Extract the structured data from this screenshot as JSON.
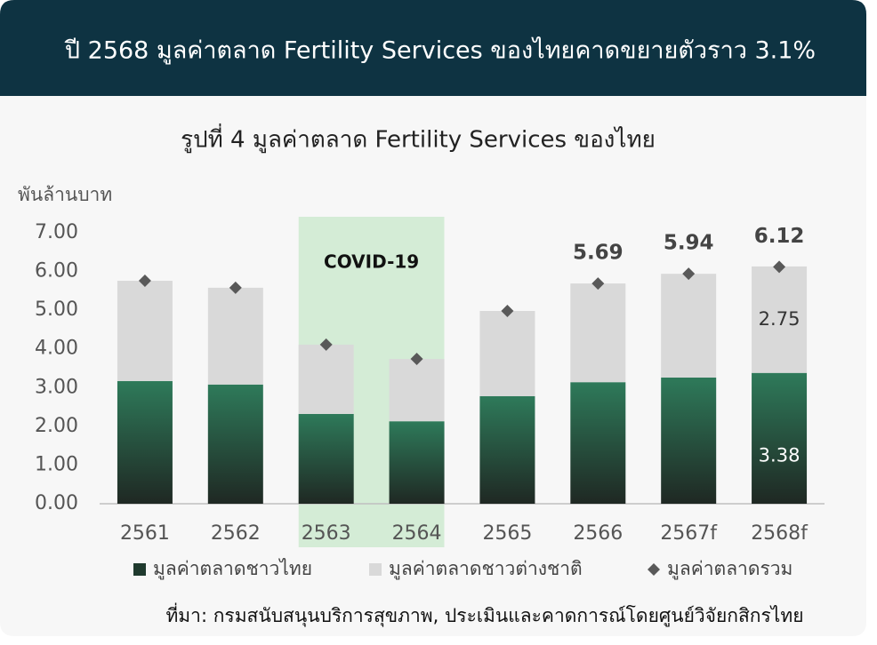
{
  "header": {
    "title": "ปี 2568 มูลค่าตลาด Fertility Services ของไทยคาดขยายตัวราว 3.1%"
  },
  "chart_data": {
    "type": "stacked_bar",
    "title": "รูปที่ 4 มูลค่าตลาด Fertility Services ของไทย",
    "y_label": "พันล้านบาท",
    "categories": [
      "2561",
      "2562",
      "2563",
      "2564",
      "2565",
      "2566",
      "2567f",
      "2568f"
    ],
    "series": [
      {
        "name": "มูลค่าตลาดชาวไทย",
        "color": "#2e7a5a",
        "values": [
          3.17,
          3.08,
          2.32,
          2.13,
          2.78,
          3.14,
          3.26,
          3.38
        ],
        "value_labels": [
          null,
          null,
          null,
          null,
          null,
          null,
          null,
          "3.38"
        ]
      },
      {
        "name": "มูลค่าตลาดชาวต่างชาติ",
        "color": "#d9d9d9",
        "values": [
          2.59,
          2.5,
          1.79,
          1.61,
          2.2,
          2.55,
          2.68,
          2.75
        ],
        "value_labels": [
          null,
          null,
          null,
          null,
          null,
          null,
          null,
          "2.75"
        ]
      },
      {
        "name": "มูลค่าตลาดรวม",
        "type": "marker",
        "color": "#595959",
        "values": [
          5.76,
          5.58,
          4.11,
          3.74,
          4.98,
          5.69,
          5.94,
          6.12
        ],
        "value_labels": [
          null,
          null,
          null,
          null,
          null,
          "5.69",
          "5.94",
          "6.12"
        ]
      }
    ],
    "highlight": {
      "label": "COVID-19",
      "from": "2563",
      "to": "2564",
      "color": "#d4ecd6"
    },
    "ylim": [
      0,
      7
    ],
    "yticks": [
      {
        "value": 0,
        "label": "0.00"
      },
      {
        "value": 1,
        "label": "1.00"
      },
      {
        "value": 2,
        "label": "2.00"
      },
      {
        "value": 3,
        "label": "3.00"
      },
      {
        "value": 4,
        "label": "4.00"
      },
      {
        "value": 5,
        "label": "5.00"
      },
      {
        "value": 6,
        "label": "6.00"
      },
      {
        "value": 7,
        "label": "7.00"
      }
    ],
    "grid": false,
    "legend": "bottom",
    "source": "ที่มา: กรมสนับสนุนบริการสุขภาพ, ประเมินและคาดการณ์โดยศูนย์วิจัยกสิกรไทย"
  }
}
